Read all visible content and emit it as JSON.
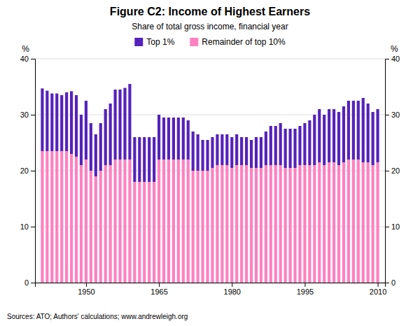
{
  "chart_data": {
    "type": "bar",
    "stacked": true,
    "title": "Figure C2: Income of Highest Earners",
    "subtitle": "Share of total gross income, financial year",
    "annotations": [
      "Sources:  ATO; Authors' calculations; www.andrewleigh.org"
    ],
    "y_label": "%",
    "y2_label": "%",
    "x": [
      1941,
      1942,
      1943,
      1944,
      1945,
      1946,
      1947,
      1948,
      1949,
      1950,
      1951,
      1952,
      1953,
      1954,
      1955,
      1956,
      1957,
      1958,
      1959,
      1960,
      1961,
      1962,
      1963,
      1964,
      1965,
      1966,
      1967,
      1968,
      1969,
      1970,
      1971,
      1972,
      1973,
      1974,
      1975,
      1976,
      1977,
      1978,
      1979,
      1980,
      1981,
      1982,
      1983,
      1984,
      1985,
      1986,
      1987,
      1988,
      1989,
      1990,
      1991,
      1992,
      1993,
      1994,
      1995,
      1996,
      1997,
      1998,
      1999,
      2000,
      2001,
      2002,
      2003,
      2004,
      2005,
      2006,
      2007,
      2008,
      2009,
      2010
    ],
    "xlim": [
      1939.5,
      2011.5
    ],
    "xticks": [
      1950,
      1965,
      1980,
      1995,
      2010
    ],
    "ylim": [
      0,
      40
    ],
    "yticks": [
      0,
      10,
      20,
      30,
      40
    ],
    "y2lim": [
      0,
      40
    ],
    "y2ticks": [
      0,
      10,
      20,
      30,
      40
    ],
    "grid": true,
    "legend": "top",
    "series": [
      {
        "name": "Remainder of top 10%",
        "color": "#FF80C0",
        "values": [
          23.5,
          23.5,
          23.5,
          23.5,
          23.5,
          23.5,
          23.0,
          22.5,
          21.0,
          22.0,
          20.0,
          19.0,
          20.0,
          21.0,
          21.0,
          22.0,
          22.0,
          22.0,
          22.0,
          18.0,
          18.0,
          18.0,
          18.0,
          18.0,
          22.0,
          22.0,
          22.0,
          22.0,
          22.0,
          22.0,
          22.0,
          20.0,
          20.0,
          20.0,
          20.0,
          20.5,
          21.0,
          21.0,
          21.0,
          20.5,
          21.0,
          21.0,
          21.0,
          20.5,
          20.5,
          20.5,
          21.0,
          21.0,
          21.0,
          21.0,
          20.5,
          20.5,
          20.5,
          21.0,
          21.0,
          21.0,
          21.0,
          21.5,
          21.0,
          21.5,
          21.5,
          21.0,
          21.5,
          22.0,
          22.0,
          22.0,
          21.5,
          21.5,
          21.0,
          21.5
        ]
      },
      {
        "name": "Top 1%",
        "color": "#5522BB",
        "values": [
          11.2,
          10.8,
          10.3,
          10.3,
          10.0,
          10.5,
          11.2,
          11.0,
          9.0,
          10.5,
          8.5,
          7.5,
          8.5,
          10.0,
          11.0,
          12.5,
          12.5,
          12.8,
          13.5,
          8.0,
          8.0,
          8.0,
          8.0,
          8.0,
          8.0,
          7.5,
          7.5,
          7.5,
          7.5,
          7.5,
          7.0,
          7.0,
          6.5,
          5.5,
          5.5,
          5.5,
          5.5,
          5.5,
          5.5,
          5.5,
          5.5,
          5.0,
          5.0,
          5.0,
          5.5,
          5.5,
          6.0,
          7.0,
          7.0,
          7.5,
          7.0,
          7.0,
          7.0,
          7.0,
          7.5,
          8.0,
          9.0,
          9.5,
          9.0,
          9.5,
          9.5,
          9.5,
          10.0,
          10.5,
          10.5,
          10.5,
          11.5,
          10.5,
          9.5,
          9.5
        ]
      }
    ]
  }
}
